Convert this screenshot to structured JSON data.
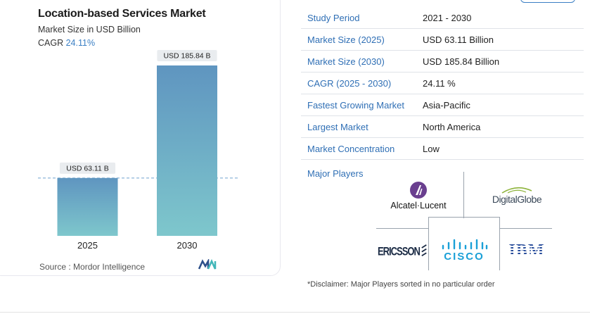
{
  "chart": {
    "title": "Location-based Services Market",
    "subtitle": "Market Size in USD Billion",
    "cagr_label": "CAGR",
    "cagr_value": "24.11%",
    "source": "Source :  Mordor Intelligence"
  },
  "chart_data": {
    "type": "bar",
    "categories": [
      "2025",
      "2030"
    ],
    "values": [
      63.11,
      185.84
    ],
    "data_labels": [
      "USD 63.11 B",
      "USD 185.84 B"
    ],
    "title": "Location-based Services Market",
    "subtitle": "Market Size in USD Billion",
    "xlabel": "",
    "ylabel": "",
    "grid": false,
    "colors": {
      "bar_top": "#5f95c0",
      "bar_bottom": "#7ec7cc",
      "reference_line": "#6fa3d0"
    }
  },
  "table": {
    "rows": [
      {
        "label": "Study Period",
        "value": "2021 - 2030"
      },
      {
        "label": "Market Size (2025)",
        "value": "USD 63.11 Billion"
      },
      {
        "label": "Market Size (2030)",
        "value": "USD 185.84 Billion"
      },
      {
        "label": "CAGR (2025 - 2030)",
        "value": "24.11 %"
      },
      {
        "label": "Fastest Growing Market",
        "value": "Asia-Pacific"
      },
      {
        "label": "Largest Market",
        "value": "North America"
      },
      {
        "label": "Market Concentration",
        "value": "Low"
      }
    ],
    "major_players_label": "Major Players"
  },
  "players": {
    "alcatel": "Alcatel·Lucent",
    "digitalglobe": "DigitalGlobe",
    "ericsson": "ERICSSON",
    "cisco": "CISCO",
    "ibm": "IBM"
  },
  "disclaimer": "*Disclaimer: Major Players sorted in no particular order",
  "colors": {
    "accent": "#2f6fb5",
    "border": "#dfe3e8"
  },
  "icons": {
    "mordor_logo": "mordor-intelligence-logo"
  }
}
